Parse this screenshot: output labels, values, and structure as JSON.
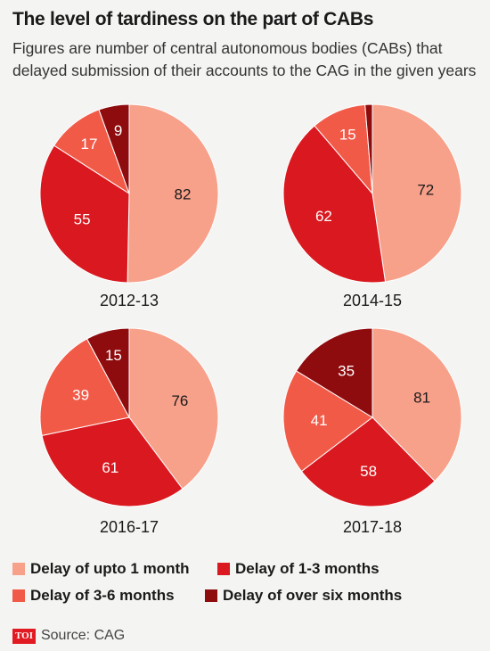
{
  "header": {
    "title": "The level of tardiness on the part of CABs",
    "subtitle": "Figures are number of central autonomous bodies (CABs) that delayed submission of their accounts to the CAG in the given years"
  },
  "colors": {
    "upto_1_month": "#f7a08a",
    "1_3_months": "#d9191f",
    "3_6_months": "#f25a48",
    "over_six_months": "#8e0b0e"
  },
  "chart_data": [
    {
      "type": "pie",
      "title": "2012-13",
      "labels": [
        "Delay of upto 1 month",
        "Delay of 1-3 months",
        "Delay of 3-6 months",
        "Delay of over six months"
      ],
      "values": [
        82,
        55,
        17,
        9
      ]
    },
    {
      "type": "pie",
      "title": "2014-15",
      "labels": [
        "Delay of upto 1 month",
        "Delay of 1-3 months",
        "Delay of 3-6 months",
        "Delay of over six months"
      ],
      "values": [
        72,
        62,
        15,
        2
      ],
      "value_labels": [
        "72",
        "62",
        "15",
        ""
      ]
    },
    {
      "type": "pie",
      "title": "2016-17",
      "labels": [
        "Delay of upto 1 month",
        "Delay of 1-3 months",
        "Delay of 3-6 months",
        "Delay of over six months"
      ],
      "values": [
        76,
        61,
        39,
        15
      ]
    },
    {
      "type": "pie",
      "title": "2017-18",
      "labels": [
        "Delay of upto 1 month",
        "Delay of 1-3 months",
        "Delay of 3-6 months",
        "Delay of over six months"
      ],
      "values": [
        81,
        58,
        41,
        35
      ]
    }
  ],
  "legend": [
    {
      "label": "Delay of upto 1 month",
      "color": "#f7a08a"
    },
    {
      "label": "Delay of 1-3 months",
      "color": "#d9191f"
    },
    {
      "label": "Delay of 3-6 months",
      "color": "#f25a48"
    },
    {
      "label": "Delay of over six months",
      "color": "#8e0b0e"
    }
  ],
  "footer": {
    "logo": "TOI",
    "source": "Source: CAG"
  }
}
